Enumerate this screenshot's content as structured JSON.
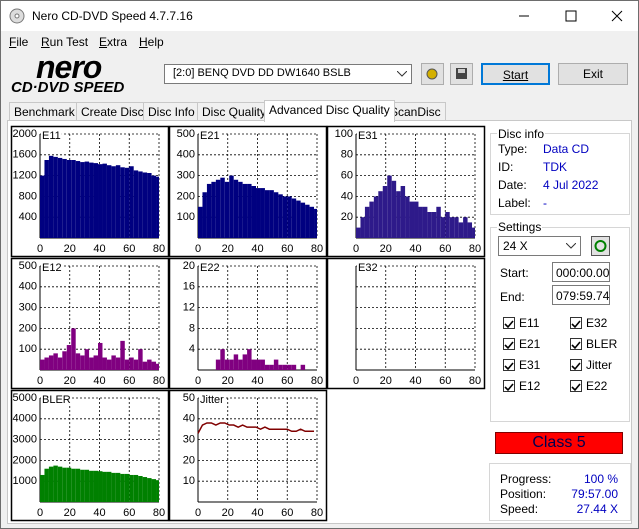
{
  "window": {
    "title": "Nero CD-DVD Speed 4.7.7.16"
  },
  "menu": [
    "File",
    "Run Test",
    "Extra",
    "Help"
  ],
  "logo": {
    "brand": "nero",
    "product": "CD·DVD SPEED"
  },
  "toolbar": {
    "drive": "[2:0]  BENQ DVD DD DW1640 BSLB",
    "start": "Start",
    "exit": "Exit"
  },
  "tabs": [
    "Benchmark",
    "Create Disc",
    "Disc Info",
    "Disc Quality",
    "Advanced Disc Quality",
    "ScanDisc"
  ],
  "disc_info": {
    "title": "Disc info",
    "rows": [
      [
        "Type:",
        "Data CD"
      ],
      [
        "ID:",
        "TDK"
      ],
      [
        "Date:",
        "4 Jul 2022"
      ],
      [
        "Label:",
        "-"
      ]
    ]
  },
  "settings": {
    "title": "Settings",
    "speed": "24 X",
    "start_label": "Start:",
    "start": "000:00.00",
    "end_label": "End:",
    "end": "079:59.74",
    "checks": [
      "E11",
      "E32",
      "E21",
      "BLER",
      "E31",
      "Jitter",
      "E12",
      "E22"
    ]
  },
  "class": "Class 5",
  "progress": {
    "rows": [
      [
        "Progress:",
        "100 %"
      ],
      [
        "Position:",
        "79:57.00"
      ],
      [
        "Speed:",
        "27.44 X"
      ]
    ]
  },
  "chart_data": [
    {
      "type": "bar",
      "title": "E11",
      "color": "#000080",
      "xlim": [
        0,
        80
      ],
      "xticks": [
        0,
        20,
        40,
        60,
        80
      ],
      "ylim": [
        0,
        2000
      ],
      "yticks": [
        400,
        800,
        1200,
        1600,
        2000
      ],
      "x": [
        0,
        3,
        6,
        9,
        12,
        15,
        18,
        21,
        24,
        27,
        30,
        33,
        36,
        39,
        42,
        45,
        48,
        51,
        54,
        57,
        60,
        63,
        66,
        69,
        72,
        75,
        78
      ],
      "values": [
        1200,
        1500,
        1580,
        1560,
        1540,
        1520,
        1500,
        1500,
        1480,
        1460,
        1470,
        1450,
        1440,
        1420,
        1430,
        1400,
        1380,
        1400,
        1360,
        1350,
        1380,
        1300,
        1280,
        1260,
        1250,
        1200,
        1180
      ]
    },
    {
      "type": "bar",
      "title": "E21",
      "color": "#000080",
      "xlim": [
        0,
        80
      ],
      "xticks": [
        0,
        20,
        40,
        60,
        80
      ],
      "ylim": [
        0,
        500
      ],
      "yticks": [
        100,
        200,
        300,
        400,
        500
      ],
      "x": [
        0,
        3,
        6,
        9,
        12,
        15,
        18,
        21,
        24,
        27,
        30,
        33,
        36,
        39,
        42,
        45,
        48,
        51,
        54,
        57,
        60,
        63,
        66,
        69,
        72,
        75,
        78
      ],
      "values": [
        150,
        220,
        260,
        270,
        280,
        290,
        270,
        300,
        280,
        270,
        260,
        260,
        250,
        240,
        240,
        230,
        230,
        220,
        210,
        200,
        200,
        190,
        180,
        170,
        160,
        150,
        140
      ]
    },
    {
      "type": "bar",
      "title": "E31",
      "color": "#2e1a8a",
      "xlim": [
        0,
        80
      ],
      "xticks": [
        0,
        20,
        40,
        60,
        80
      ],
      "ylim": [
        0,
        100
      ],
      "yticks": [
        20,
        40,
        60,
        80,
        100
      ],
      "x": [
        0,
        3,
        6,
        9,
        12,
        15,
        18,
        21,
        24,
        27,
        30,
        33,
        36,
        39,
        42,
        45,
        48,
        51,
        54,
        57,
        60,
        63,
        66,
        69,
        72,
        75,
        78
      ],
      "values": [
        10,
        20,
        30,
        35,
        40,
        45,
        50,
        60,
        55,
        45,
        50,
        40,
        35,
        35,
        30,
        30,
        25,
        25,
        30,
        20,
        25,
        20,
        20,
        15,
        20,
        15,
        10
      ]
    },
    {
      "type": "bar",
      "title": "E12",
      "color": "#800080",
      "xlim": [
        0,
        80
      ],
      "xticks": [
        0,
        20,
        40,
        60,
        80
      ],
      "ylim": [
        0,
        500
      ],
      "yticks": [
        100,
        200,
        300,
        400,
        500
      ],
      "x": [
        0,
        3,
        6,
        9,
        12,
        15,
        18,
        21,
        24,
        27,
        30,
        33,
        36,
        39,
        42,
        45,
        48,
        51,
        54,
        57,
        60,
        63,
        66,
        69,
        72,
        75,
        78
      ],
      "values": [
        50,
        60,
        70,
        80,
        60,
        90,
        120,
        200,
        80,
        70,
        100,
        60,
        70,
        130,
        60,
        50,
        70,
        60,
        140,
        50,
        60,
        50,
        100,
        40,
        50,
        40,
        30
      ]
    },
    {
      "type": "bar",
      "title": "E22",
      "color": "#800080",
      "xlim": [
        0,
        80
      ],
      "xticks": [
        0,
        20,
        40,
        60,
        80
      ],
      "ylim": [
        0,
        20
      ],
      "yticks": [
        4,
        8,
        12,
        16,
        20
      ],
      "x": [
        0,
        3,
        6,
        9,
        12,
        15,
        18,
        21,
        24,
        27,
        30,
        33,
        36,
        39,
        42,
        45,
        48,
        51,
        54,
        57,
        60,
        63,
        66,
        69,
        72,
        75,
        78
      ],
      "values": [
        0,
        0,
        0,
        0,
        2,
        4,
        2,
        2,
        3,
        2,
        3,
        4,
        2,
        2,
        2,
        1,
        1,
        2,
        1,
        1,
        1,
        1,
        0,
        1,
        0,
        0,
        0
      ]
    },
    {
      "type": "bar",
      "title": "E32",
      "color": "#800080",
      "xlim": [
        0,
        80
      ],
      "xticks": [
        0,
        20,
        40,
        60,
        80
      ],
      "ylim": [
        0,
        20
      ],
      "yticks": [
        4,
        8,
        12,
        16,
        20
      ],
      "ytick_labels": false,
      "x": [],
      "values": []
    },
    {
      "type": "bar",
      "title": "BLER",
      "color": "#008000",
      "xlim": [
        0,
        80
      ],
      "xticks": [
        0,
        20,
        40,
        60,
        80
      ],
      "ylim": [
        0,
        5000
      ],
      "yticks": [
        1000,
        2000,
        3000,
        4000,
        5000
      ],
      "x": [
        0,
        3,
        6,
        9,
        12,
        15,
        18,
        21,
        24,
        27,
        30,
        33,
        36,
        39,
        42,
        45,
        48,
        51,
        54,
        57,
        60,
        63,
        66,
        69,
        72,
        75,
        78
      ],
      "values": [
        1300,
        1600,
        1700,
        1750,
        1700,
        1650,
        1650,
        1600,
        1600,
        1550,
        1550,
        1500,
        1500,
        1480,
        1450,
        1450,
        1400,
        1400,
        1350,
        1350,
        1300,
        1300,
        1250,
        1200,
        1150,
        1100,
        1050
      ]
    },
    {
      "type": "line",
      "title": "Jitter",
      "color": "#800000",
      "xlim": [
        0,
        80
      ],
      "xticks": [
        0,
        20,
        40,
        60,
        80
      ],
      "ylim": [
        0,
        50
      ],
      "yticks": [
        10,
        20,
        30,
        40,
        50
      ],
      "x": [
        0,
        3,
        6,
        9,
        12,
        15,
        18,
        21,
        24,
        27,
        30,
        33,
        36,
        39,
        42,
        45,
        48,
        51,
        54,
        57,
        60,
        63,
        66,
        69,
        72,
        75,
        78
      ],
      "values": [
        33,
        37,
        38,
        38,
        37,
        38,
        38,
        37,
        37,
        36,
        37,
        36,
        36,
        36,
        35,
        36,
        35,
        35,
        35,
        35,
        35,
        34,
        34,
        35,
        34,
        34,
        34
      ]
    }
  ]
}
